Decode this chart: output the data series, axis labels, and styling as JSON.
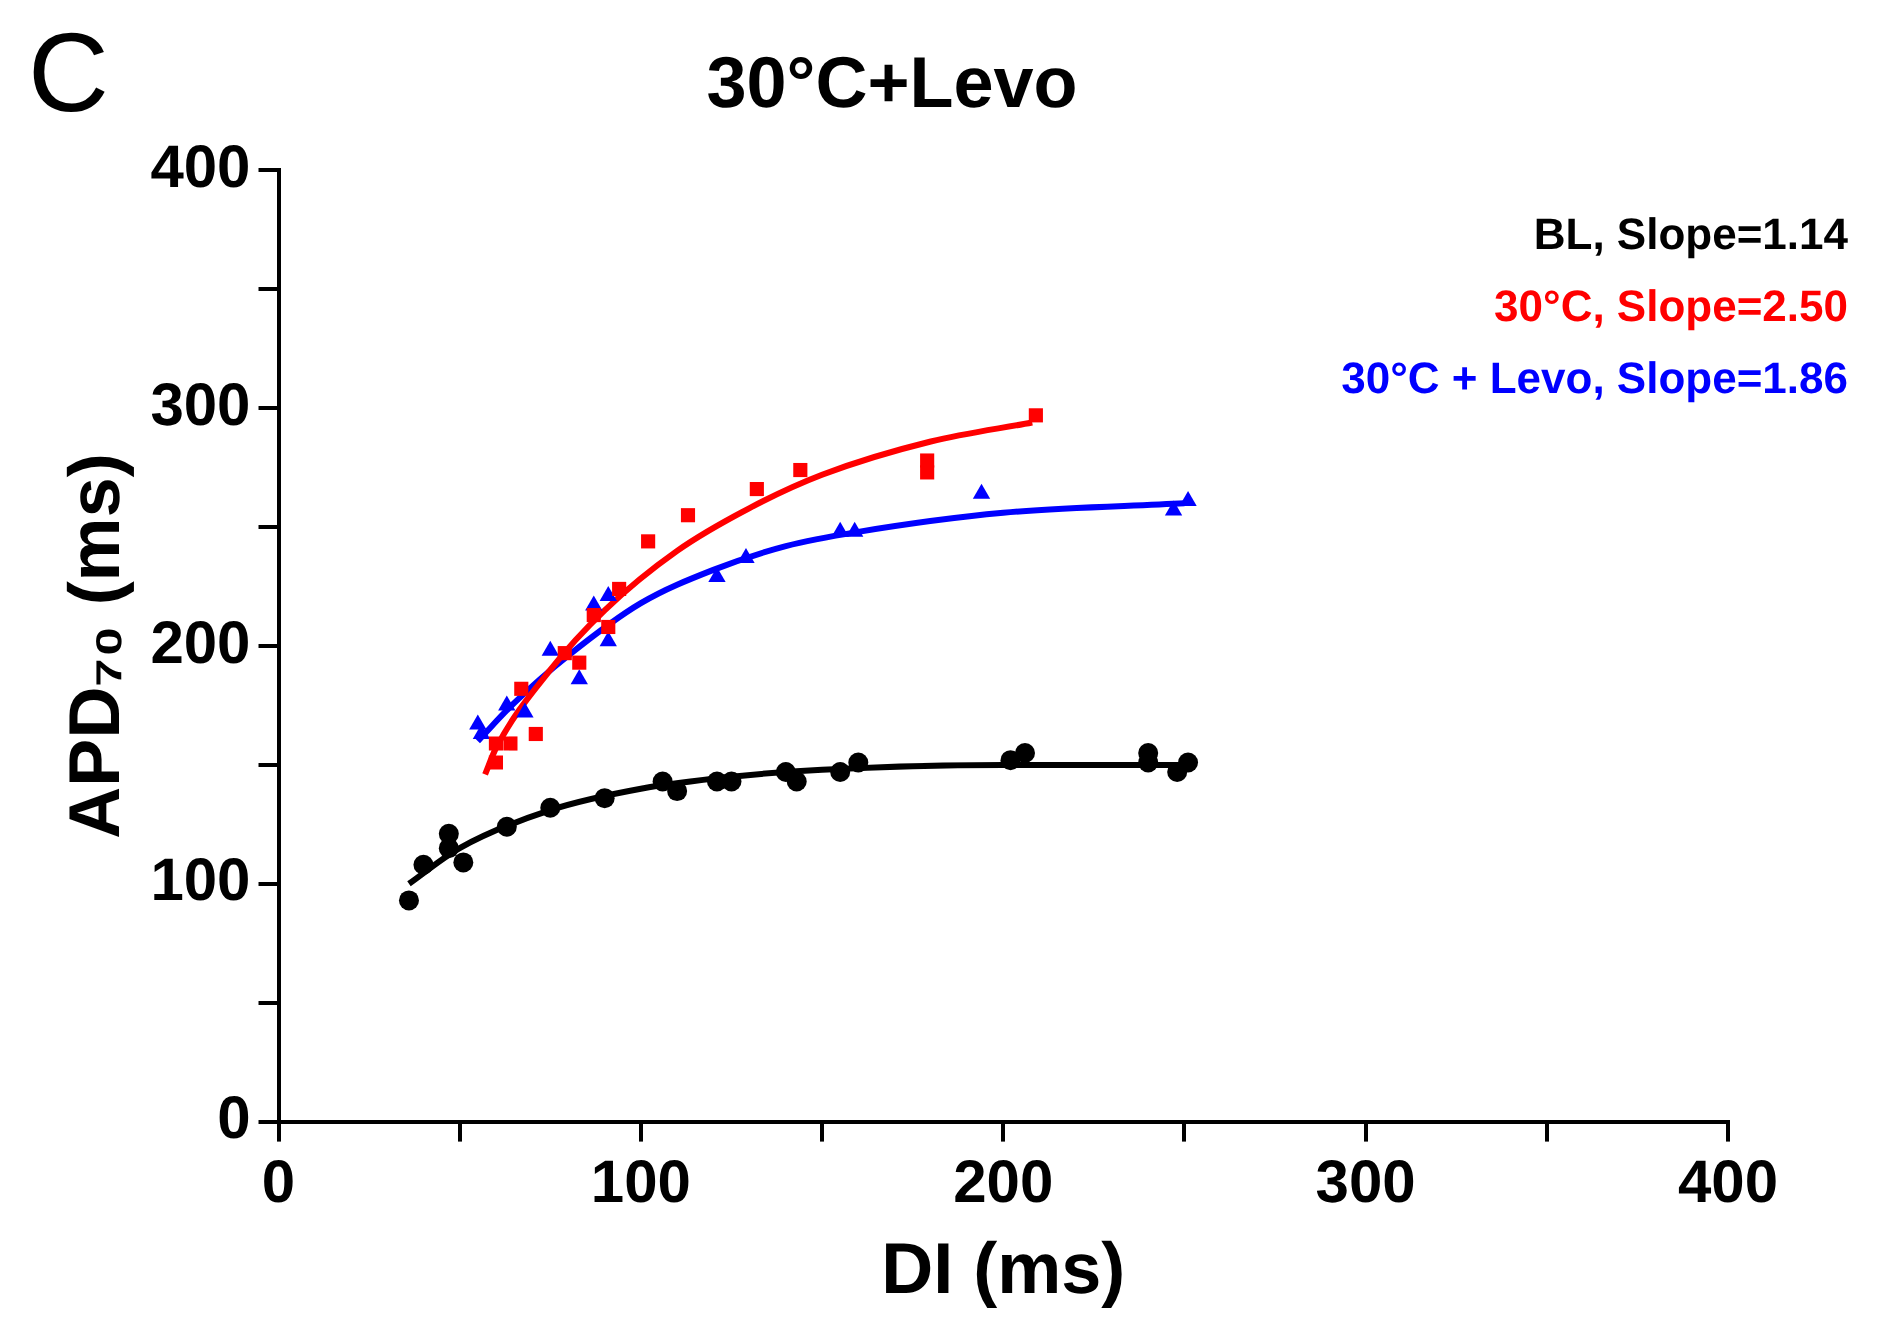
{
  "chart_data": {
    "type": "scatter",
    "title": "30°C+Levo",
    "xlabel": "DI (ms)",
    "ylabel": "APD₇₀ (ms)",
    "annotations": [
      "C"
    ],
    "xlim": [
      0,
      400
    ],
    "xticks": [
      0,
      {
        "value": 50,
        "label": null
      },
      100,
      {
        "value": 150,
        "label": null
      },
      200,
      {
        "value": 250,
        "label": null
      },
      300,
      {
        "value": 350,
        "label": null
      },
      400
    ],
    "ylim": [
      0,
      400
    ],
    "yticks": [
      0,
      {
        "value": 50,
        "label": null
      },
      100,
      {
        "value": 150,
        "label": null
      },
      200,
      {
        "value": 250,
        "label": null
      },
      300,
      {
        "value": 350,
        "label": null
      },
      400
    ],
    "grid": false,
    "legend": "top right",
    "series": [
      {
        "name": "BL, Slope=1.14",
        "color": "#000000",
        "marker": "circle",
        "x": [
          36,
          40,
          47,
          47,
          51,
          63,
          75,
          90,
          106,
          110,
          121,
          125,
          140,
          143,
          155,
          160,
          202,
          206,
          240,
          240,
          248,
          251
        ],
        "values": [
          93,
          108,
          121,
          115,
          109,
          124,
          132,
          136,
          143,
          139,
          143,
          143,
          147,
          143,
          147,
          151,
          152,
          155,
          155,
          151,
          147,
          151
        ]
      },
      {
        "name": "30°C, Slope=2.50",
        "color": "#ff0000",
        "marker": "square",
        "x": [
          60,
          60,
          64,
          71,
          67,
          83,
          79,
          87,
          91,
          94,
          102,
          113,
          132,
          144,
          179,
          179,
          209
        ],
        "values": [
          151,
          159,
          159,
          163,
          182,
          193,
          197,
          213,
          208,
          224,
          244,
          255,
          266,
          274,
          278,
          273,
          297
        ]
      },
      {
        "name": "30°C + Levo, Slope=1.86",
        "color": "#0000ff",
        "marker": "triangle",
        "x": [
          55,
          56,
          63,
          68,
          75,
          83,
          87,
          91,
          91,
          121,
          129,
          155,
          159,
          194,
          247,
          251
        ],
        "values": [
          167,
          163,
          175,
          172,
          198,
          186,
          217,
          221,
          202,
          229,
          237,
          248,
          248,
          264,
          257,
          261
        ]
      },
      {
        "type": "line",
        "color": "#000000",
        "marker": "none",
        "x": [
          36,
          50,
          75,
          100,
          125,
          150,
          200,
          250
        ],
        "values": [
          100,
          115,
          131,
          140,
          145,
          148,
          150,
          150
        ]
      },
      {
        "type": "line",
        "color": "#ff0000",
        "marker": "none",
        "x": [
          57,
          60,
          75,
          90,
          110,
          130,
          150,
          180,
          208
        ],
        "values": [
          146,
          157,
          190,
          215,
          240,
          258,
          272,
          286,
          294
        ]
      },
      {
        "type": "line",
        "color": "#0000ff",
        "marker": "none",
        "x": [
          55,
          65,
          80,
          100,
          120,
          140,
          160,
          200,
          250
        ],
        "values": [
          160,
          176,
          196,
          218,
          232,
          242,
          248,
          256,
          260
        ]
      }
    ]
  }
}
